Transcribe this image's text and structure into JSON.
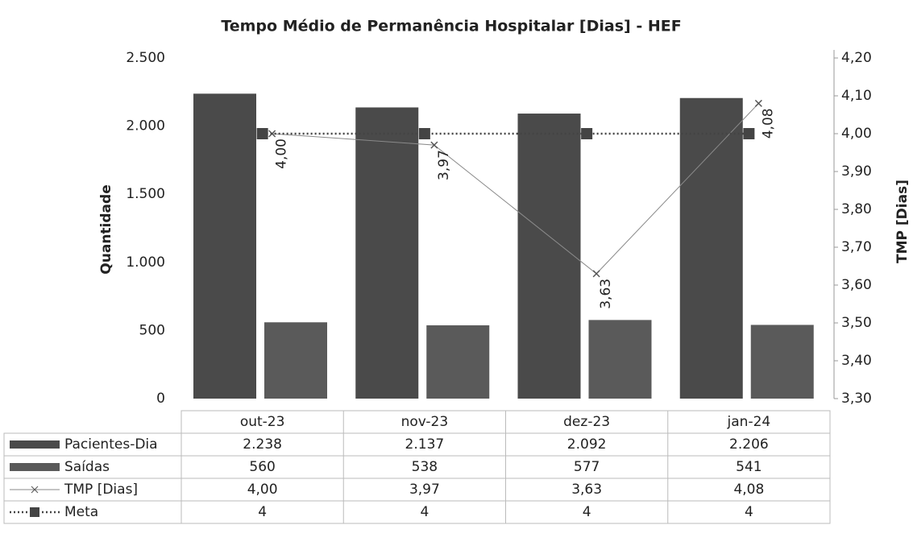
{
  "chart_data": {
    "type": "bar",
    "title": "Tempo Médio de Permanência Hospitalar [Dias] - HEF",
    "ylabel": "Quantidade",
    "y2label": "TMP [Dias]",
    "categories": [
      "out-23",
      "nov-23",
      "dez-23",
      "jan-24"
    ],
    "series": [
      {
        "name": "Pacientes-Dia",
        "type": "bar",
        "color": "#4a4a4a",
        "values": [
          2238,
          2137,
          2092,
          2206
        ],
        "value_labels": [
          "2.238",
          "2.137",
          "2.092",
          "2.206"
        ]
      },
      {
        "name": "Saídas",
        "type": "bar",
        "color": "#5a5a5a",
        "values": [
          560,
          538,
          577,
          541
        ]
      },
      {
        "name": "TMP [Dias]",
        "type": "line",
        "axis": "y2",
        "color": "#8a8a8a",
        "values": [
          4.0,
          3.97,
          3.63,
          4.08
        ],
        "value_labels": [
          "4,00",
          "3,97",
          "3,63",
          "4,08"
        ]
      },
      {
        "name": "Meta",
        "type": "line",
        "axis": "y2",
        "color": "#444444",
        "values": [
          4,
          4,
          4,
          4
        ]
      }
    ],
    "ylim": [
      0,
      2500
    ],
    "yticks": [
      0,
      500,
      {
        "value": 1000,
        "label": "1.000"
      },
      {
        "value": 1500,
        "label": "1.500"
      },
      {
        "value": 2000,
        "label": "2.000"
      },
      {
        "value": 2500,
        "label": "2.500"
      }
    ],
    "y2lim": [
      3.3,
      4.2
    ],
    "y2ticks": [
      {
        "value": 3.3,
        "label": "3,30"
      },
      {
        "value": 3.4,
        "label": "3,40"
      },
      {
        "value": 3.5,
        "label": "3,50"
      },
      {
        "value": 3.6,
        "label": "3,60"
      },
      {
        "value": 3.7,
        "label": "3,70"
      },
      {
        "value": 3.8,
        "label": "3,80"
      },
      {
        "value": 3.9,
        "label": "3,90"
      },
      {
        "value": 4.0,
        "label": "4,00"
      },
      {
        "value": 4.1,
        "label": "4,10"
      },
      {
        "value": 4.2,
        "label": "4,20"
      }
    ],
    "data_table": true
  }
}
